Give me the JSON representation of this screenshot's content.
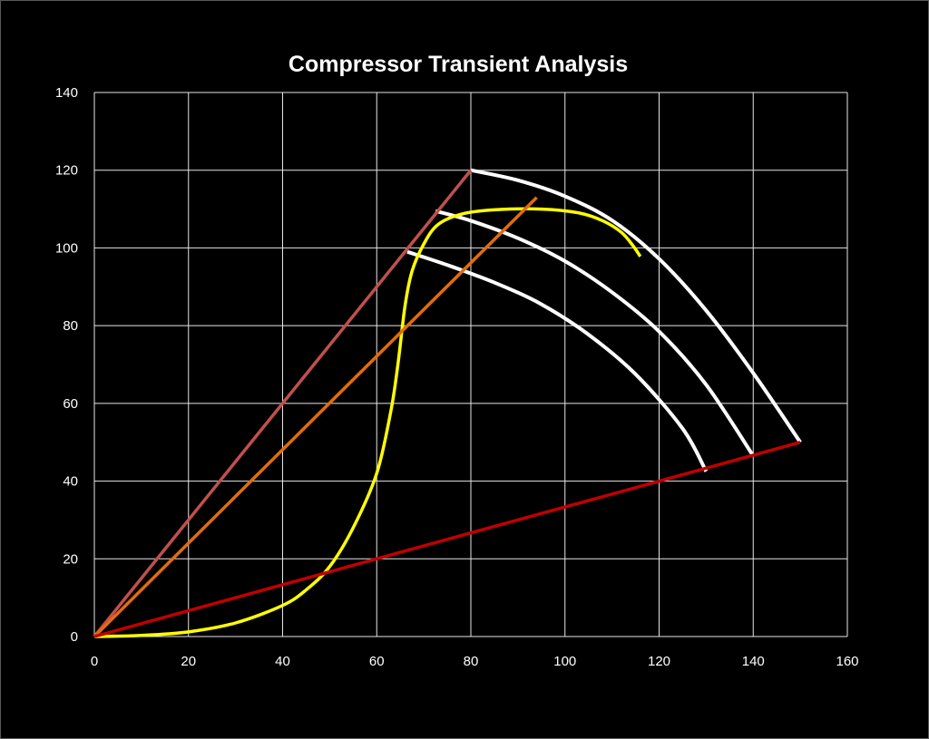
{
  "chart_data": {
    "type": "line",
    "title": "Compressor Transient Analysis",
    "xlabel": "",
    "ylabel": "",
    "xlim": [
      0,
      160
    ],
    "ylim": [
      0,
      140
    ],
    "x_ticks": [
      "0",
      "20",
      "40",
      "60",
      "80",
      "100",
      "120",
      "140",
      "160"
    ],
    "y_ticks": [
      "0",
      "20",
      "40",
      "60",
      "80",
      "100",
      "120",
      "140"
    ],
    "grid": true,
    "legend": "none",
    "background": "#000000",
    "series": [
      {
        "kind": "speed-line",
        "color": "#ffffff",
        "points": [
          [
            80,
            120
          ],
          [
            90,
            117.4
          ],
          [
            100,
            113.3
          ],
          [
            110,
            107.1
          ],
          [
            120,
            97.2
          ],
          [
            130,
            83.9
          ],
          [
            140,
            67.8
          ],
          [
            150,
            50
          ]
        ]
      },
      {
        "kind": "speed-line",
        "color": "#ffffff",
        "points": [
          [
            72.5,
            109.5
          ],
          [
            80,
            107
          ],
          [
            90,
            102.5
          ],
          [
            100,
            96.6
          ],
          [
            110,
            88.6
          ],
          [
            120,
            78.5
          ],
          [
            130,
            64.8
          ],
          [
            140,
            46.5
          ]
        ]
      },
      {
        "kind": "speed-line",
        "color": "#ffffff",
        "points": [
          [
            66.5,
            99
          ],
          [
            75,
            95.6
          ],
          [
            85,
            91.1
          ],
          [
            95,
            85.5
          ],
          [
            105,
            77.7
          ],
          [
            115,
            67.5
          ],
          [
            125,
            53.5
          ],
          [
            130,
            42.5
          ]
        ]
      },
      {
        "kind": "transient-path",
        "color": "#ffff00",
        "points": [
          [
            0,
            0
          ],
          [
            10,
            0.3
          ],
          [
            20,
            1.2
          ],
          [
            30,
            3.5
          ],
          [
            40,
            8
          ],
          [
            45,
            12
          ],
          [
            50,
            18
          ],
          [
            55,
            28
          ],
          [
            60,
            42
          ],
          [
            63,
            58
          ],
          [
            64.5,
            70
          ],
          [
            66,
            85
          ],
          [
            67.5,
            94
          ],
          [
            70,
            101
          ],
          [
            73,
            106
          ],
          [
            78,
            108.7
          ],
          [
            85,
            109.8
          ],
          [
            95,
            110
          ],
          [
            103,
            109
          ],
          [
            108,
            107
          ],
          [
            112,
            104
          ],
          [
            114.5,
            100.5
          ],
          [
            116,
            97.8
          ]
        ]
      },
      {
        "kind": "ray",
        "color": "#c0504d",
        "points": [
          [
            0,
            0
          ],
          [
            80,
            120
          ]
        ]
      },
      {
        "kind": "ray",
        "color": "#e36c09",
        "points": [
          [
            0,
            0
          ],
          [
            94,
            113
          ]
        ]
      },
      {
        "kind": "ray",
        "color": "#c00000",
        "points": [
          [
            0,
            0
          ],
          [
            150,
            50
          ]
        ]
      }
    ]
  }
}
